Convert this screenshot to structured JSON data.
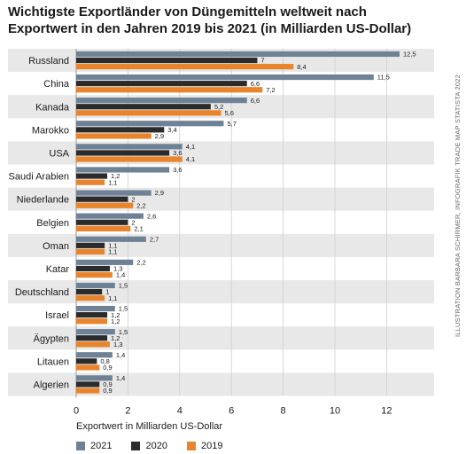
{
  "title": "Wichtigste Exportländer von Düngemitteln weltweit nach Exportwert in den Jahren 2019 bis 2021 (in Milliarden US-Dollar)",
  "credit": "ILLUSTRATION BARBARA SCHIRMER, INFOGRAFIK TRADE MAP STATISTA 2022",
  "colors": {
    "2021": "#6f8295",
    "2020": "#2b2b2b",
    "2019": "#e8842c",
    "band": "#e8e8e8",
    "grid": "#cfcfcf"
  },
  "chart_data": {
    "type": "bar",
    "orientation": "horizontal",
    "title": "Wichtigste Exportländer von Düngemitteln weltweit nach Exportwert in den Jahren 2019 bis 2021 (in Milliarden US-Dollar)",
    "xlabel": "Exportwert in Milliarden US-Dollar",
    "ylabel": "",
    "xlim": [
      0,
      14
    ],
    "xticks": [
      0,
      2,
      4,
      6,
      8,
      10,
      12
    ],
    "grid": true,
    "legend_position": "bottom",
    "categories": [
      "Russland",
      "China",
      "Kanada",
      "Marokko",
      "USA",
      "Saudi Arabien",
      "Niederlande",
      "Belgien",
      "Oman",
      "Katar",
      "Deutschland",
      "Israel",
      "Ägypten",
      "Litauen",
      "Algerien"
    ],
    "series": [
      {
        "name": "2021",
        "values": [
          12.5,
          11.5,
          6.6,
          5.7,
          4.1,
          3.6,
          2.9,
          2.6,
          2.7,
          2.2,
          1.5,
          1.5,
          1.5,
          1.4,
          1.4
        ],
        "labels": [
          "12,5",
          "11,5",
          "6,6",
          "5,7",
          "4,1",
          "3,6",
          "2,9",
          "2,6",
          "2,7",
          "2,2",
          "1,5",
          "1,5",
          "1,5",
          "1,4",
          "1,4"
        ]
      },
      {
        "name": "2020",
        "values": [
          7,
          6.6,
          5.2,
          3.4,
          3.6,
          1.2,
          2,
          2,
          1.1,
          1.3,
          1,
          1.2,
          1.2,
          0.8,
          0.9
        ],
        "labels": [
          "7",
          "6,6",
          "5,2",
          "3,4",
          "3,6",
          "1,2",
          "2",
          "2",
          "1,1",
          "1,3",
          "1",
          "1,2",
          "1,2",
          "0,8",
          "0,9"
        ]
      },
      {
        "name": "2019",
        "values": [
          8.4,
          7.2,
          5.6,
          2.9,
          4.1,
          1.1,
          2.2,
          2.1,
          1.1,
          1.4,
          1.1,
          1.2,
          1.3,
          0.9,
          0.9
        ],
        "labels": [
          "8,4",
          "7,2",
          "5,6",
          "2,9",
          "4,1",
          "1,1",
          "2,2",
          "2,1",
          "1,1",
          "1,4",
          "1,1",
          "1,2",
          "1,3",
          "0,9",
          "0,9"
        ]
      }
    ]
  }
}
